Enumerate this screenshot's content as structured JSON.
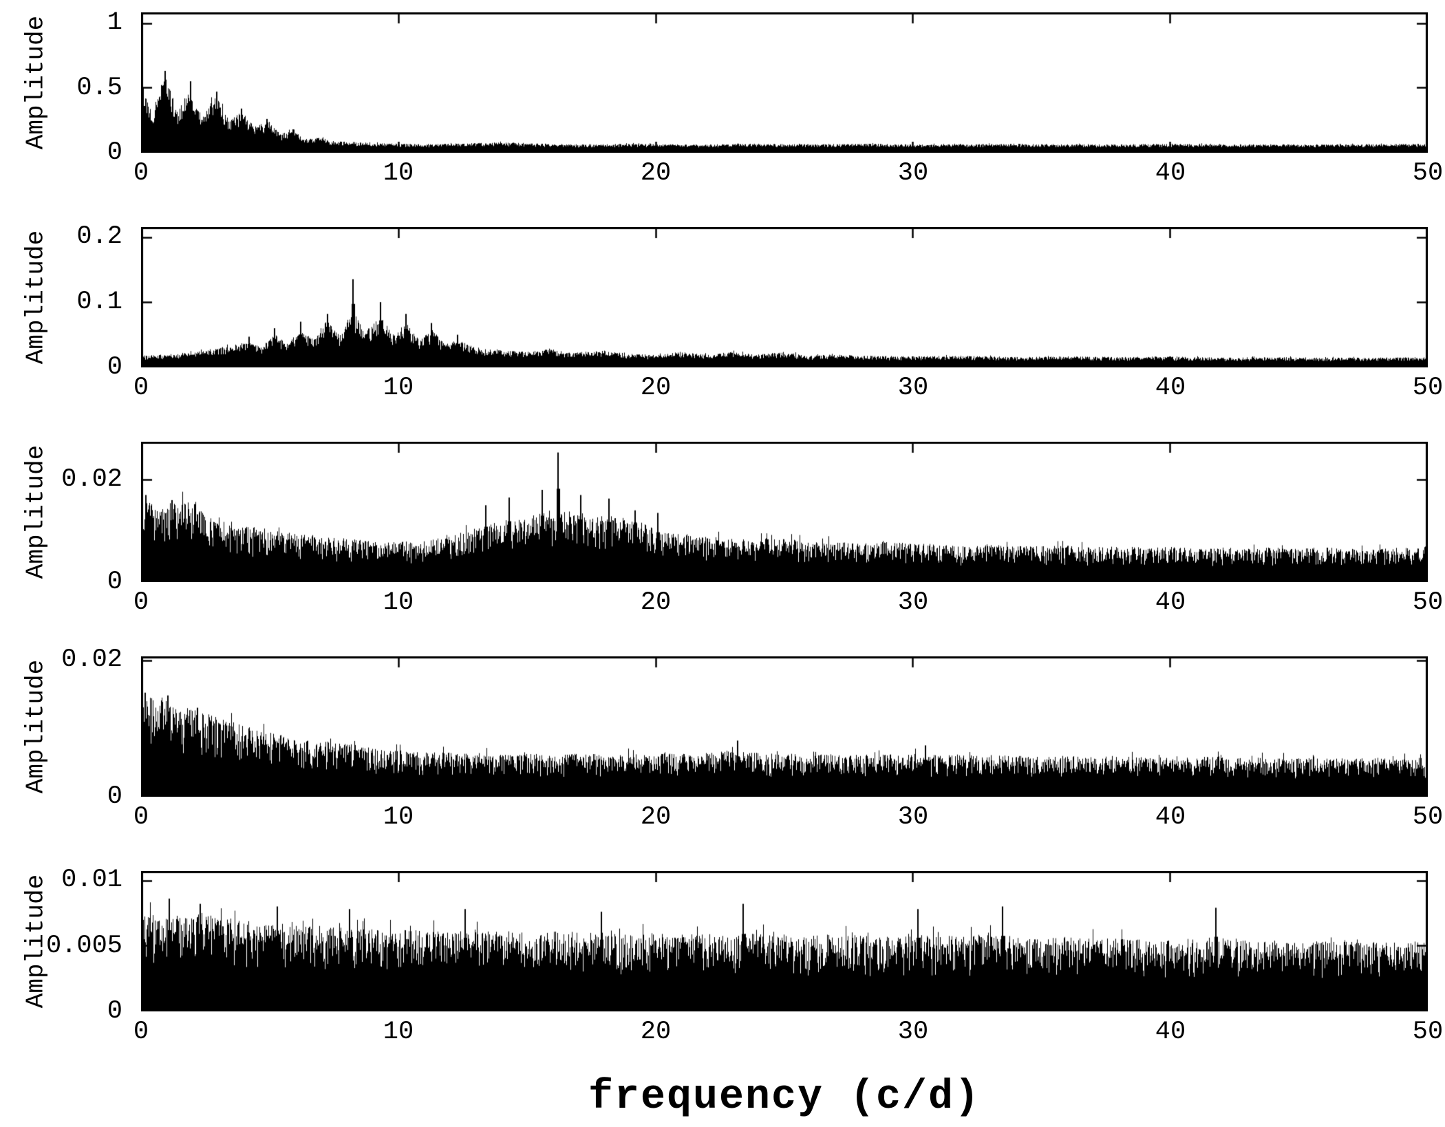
{
  "figure": {
    "xlabel": "frequency (c/d)",
    "background": "#ffffff",
    "ink": "#000000"
  },
  "chart_data": [
    {
      "type": "area",
      "panel": 1,
      "title": "",
      "xlabel": "",
      "ylabel": "Amplitude",
      "xlim": [
        0,
        50
      ],
      "ylim": [
        0,
        1.08
      ],
      "xticks": [
        0,
        10,
        20,
        30,
        40,
        50
      ],
      "yticks": [
        0,
        0.5,
        1
      ],
      "ytick_labels": [
        "0",
        "0.5",
        "1"
      ],
      "grid": false,
      "legend": false,
      "texture": "dense",
      "envelope": [
        [
          0,
          0.5
        ],
        [
          0.45,
          0.33
        ],
        [
          0.9,
          0.6
        ],
        [
          1.4,
          0.33
        ],
        [
          1.9,
          0.52
        ],
        [
          2.4,
          0.29
        ],
        [
          2.9,
          0.45
        ],
        [
          3.4,
          0.26
        ],
        [
          3.9,
          0.33
        ],
        [
          4.4,
          0.2
        ],
        [
          4.9,
          0.24
        ],
        [
          5.4,
          0.15
        ],
        [
          5.9,
          0.17
        ],
        [
          6.4,
          0.11
        ],
        [
          6.9,
          0.12
        ],
        [
          7.5,
          0.09
        ],
        [
          8,
          0.085
        ],
        [
          9,
          0.075
        ],
        [
          10,
          0.07
        ],
        [
          11,
          0.065
        ],
        [
          12,
          0.07
        ],
        [
          13,
          0.075
        ],
        [
          14,
          0.08
        ],
        [
          15,
          0.075
        ],
        [
          16,
          0.07
        ],
        [
          17,
          0.065
        ],
        [
          18,
          0.065
        ],
        [
          19,
          0.07
        ],
        [
          20,
          0.065
        ],
        [
          22,
          0.065
        ],
        [
          24,
          0.07
        ],
        [
          26,
          0.065
        ],
        [
          28,
          0.07
        ],
        [
          30,
          0.065
        ],
        [
          32,
          0.065
        ],
        [
          34,
          0.07
        ],
        [
          36,
          0.065
        ],
        [
          38,
          0.065
        ],
        [
          40,
          0.07
        ],
        [
          42,
          0.065
        ],
        [
          44,
          0.065
        ],
        [
          46,
          0.065
        ],
        [
          48,
          0.065
        ],
        [
          50,
          0.07
        ]
      ],
      "peaks": [
        [
          0.07,
          0.5
        ],
        [
          0.93,
          0.63
        ],
        [
          1.93,
          0.55
        ],
        [
          2.93,
          0.47
        ],
        [
          3.9,
          0.34
        ],
        [
          4.9,
          0.26
        ],
        [
          5.9,
          0.18
        ]
      ]
    },
    {
      "type": "area",
      "panel": 2,
      "title": "",
      "xlabel": "",
      "ylabel": "Amplitude",
      "xlim": [
        0,
        50
      ],
      "ylim": [
        0,
        0.215
      ],
      "xticks": [
        0,
        10,
        20,
        30,
        40,
        50
      ],
      "yticks": [
        0,
        0.1,
        0.2
      ],
      "ytick_labels": [
        "0",
        "0.1",
        "0.2"
      ],
      "grid": false,
      "legend": false,
      "texture": "dense",
      "envelope": [
        [
          0,
          0.018
        ],
        [
          1,
          0.02
        ],
        [
          2,
          0.024
        ],
        [
          3,
          0.03
        ],
        [
          3.7,
          0.036
        ],
        [
          4.2,
          0.042
        ],
        [
          4.7,
          0.032
        ],
        [
          5.2,
          0.052
        ],
        [
          5.7,
          0.036
        ],
        [
          6.2,
          0.062
        ],
        [
          6.7,
          0.042
        ],
        [
          7.2,
          0.072
        ],
        [
          7.7,
          0.05
        ],
        [
          8.2,
          0.09
        ],
        [
          8.7,
          0.055
        ],
        [
          9.3,
          0.078
        ],
        [
          9.8,
          0.05
        ],
        [
          10.3,
          0.068
        ],
        [
          10.8,
          0.042
        ],
        [
          11.3,
          0.058
        ],
        [
          11.8,
          0.036
        ],
        [
          12.3,
          0.042
        ],
        [
          13,
          0.03
        ],
        [
          14,
          0.026
        ],
        [
          15,
          0.024
        ],
        [
          16,
          0.03
        ],
        [
          16.5,
          0.022
        ],
        [
          17,
          0.024
        ],
        [
          18,
          0.026
        ],
        [
          19,
          0.02
        ],
        [
          20,
          0.02
        ],
        [
          21,
          0.024
        ],
        [
          22,
          0.02
        ],
        [
          23,
          0.024
        ],
        [
          24,
          0.02
        ],
        [
          25,
          0.024
        ],
        [
          26,
          0.018
        ],
        [
          27,
          0.02
        ],
        [
          28,
          0.018
        ],
        [
          30,
          0.017
        ],
        [
          32,
          0.018
        ],
        [
          34,
          0.016
        ],
        [
          36,
          0.017
        ],
        [
          38,
          0.016
        ],
        [
          40,
          0.017
        ],
        [
          42,
          0.015
        ],
        [
          44,
          0.016
        ],
        [
          46,
          0.015
        ],
        [
          48,
          0.015
        ],
        [
          50,
          0.016
        ]
      ],
      "peaks": [
        [
          8.25,
          0.135
        ],
        [
          9.3,
          0.1
        ],
        [
          7.25,
          0.082
        ],
        [
          10.3,
          0.082
        ],
        [
          6.2,
          0.07
        ],
        [
          11.3,
          0.068
        ],
        [
          5.2,
          0.06
        ],
        [
          4.2,
          0.047
        ],
        [
          12.3,
          0.05
        ]
      ]
    },
    {
      "type": "area",
      "panel": 3,
      "title": "",
      "xlabel": "",
      "ylabel": "Amplitude",
      "xlim": [
        0,
        50
      ],
      "ylim": [
        0,
        0.0274
      ],
      "xticks": [
        0,
        10,
        20,
        30,
        40,
        50
      ],
      "yticks": [
        0,
        0.02
      ],
      "ytick_labels": [
        "0",
        "0.02"
      ],
      "grid": false,
      "legend": false,
      "texture": "spiky",
      "envelope": [
        [
          0,
          0.017
        ],
        [
          0.7,
          0.014
        ],
        [
          1.2,
          0.016
        ],
        [
          2,
          0.0155
        ],
        [
          2.6,
          0.013
        ],
        [
          3.2,
          0.0125
        ],
        [
          4,
          0.011
        ],
        [
          5,
          0.0105
        ],
        [
          6,
          0.0095
        ],
        [
          7,
          0.009
        ],
        [
          8,
          0.0085
        ],
        [
          9,
          0.008
        ],
        [
          10,
          0.008
        ],
        [
          11,
          0.008
        ],
        [
          12,
          0.009
        ],
        [
          13,
          0.0105
        ],
        [
          13.6,
          0.0115
        ],
        [
          14.3,
          0.0125
        ],
        [
          15,
          0.0125
        ],
        [
          15.6,
          0.014
        ],
        [
          16.2,
          0.0145
        ],
        [
          16.8,
          0.013
        ],
        [
          17.4,
          0.0135
        ],
        [
          18.2,
          0.013
        ],
        [
          19,
          0.012
        ],
        [
          19.6,
          0.0115
        ],
        [
          20.3,
          0.01
        ],
        [
          21,
          0.0095
        ],
        [
          22,
          0.009
        ],
        [
          23,
          0.0085
        ],
        [
          24,
          0.0085
        ],
        [
          25,
          0.0085
        ],
        [
          26,
          0.008
        ],
        [
          27,
          0.008
        ],
        [
          28,
          0.0075
        ],
        [
          29,
          0.008
        ],
        [
          30,
          0.0075
        ],
        [
          31,
          0.0075
        ],
        [
          32,
          0.007
        ],
        [
          33,
          0.0075
        ],
        [
          34,
          0.007
        ],
        [
          35,
          0.007
        ],
        [
          36,
          0.0072
        ],
        [
          37,
          0.0068
        ],
        [
          38,
          0.007
        ],
        [
          39,
          0.0068
        ],
        [
          40,
          0.007
        ],
        [
          41,
          0.0065
        ],
        [
          42,
          0.0068
        ],
        [
          43,
          0.0065
        ],
        [
          44,
          0.0068
        ],
        [
          45,
          0.0065
        ],
        [
          46,
          0.0068
        ],
        [
          47,
          0.0065
        ],
        [
          48,
          0.0065
        ],
        [
          49,
          0.0068
        ],
        [
          50,
          0.007
        ]
      ],
      "peaks": [
        [
          16.2,
          0.0253
        ],
        [
          15.6,
          0.018
        ],
        [
          14.3,
          0.0165
        ],
        [
          17.1,
          0.017
        ],
        [
          18.2,
          0.0163
        ],
        [
          13.4,
          0.015
        ],
        [
          19.2,
          0.014
        ],
        [
          0.2,
          0.017
        ],
        [
          1.2,
          0.016
        ],
        [
          2.1,
          0.0152
        ],
        [
          20.1,
          0.0135
        ]
      ]
    },
    {
      "type": "area",
      "panel": 4,
      "title": "",
      "xlabel": "",
      "ylabel": "Amplitude",
      "xlim": [
        0,
        50
      ],
      "ylim": [
        0,
        0.0205
      ],
      "xticks": [
        0,
        10,
        20,
        30,
        40,
        50
      ],
      "yticks": [
        0,
        0.02
      ],
      "ytick_labels": [
        "0",
        "0.02"
      ],
      "grid": false,
      "legend": false,
      "texture": "spiky",
      "envelope": [
        [
          0,
          0.0152
        ],
        [
          0.5,
          0.0142
        ],
        [
          1,
          0.0145
        ],
        [
          1.5,
          0.0132
        ],
        [
          2,
          0.0128
        ],
        [
          2.5,
          0.0122
        ],
        [
          3,
          0.0115
        ],
        [
          3.5,
          0.011
        ],
        [
          4,
          0.0105
        ],
        [
          4.5,
          0.0098
        ],
        [
          5,
          0.0095
        ],
        [
          5.5,
          0.009
        ],
        [
          6,
          0.0088
        ],
        [
          6.5,
          0.0085
        ],
        [
          7,
          0.0082
        ],
        [
          7.5,
          0.008
        ],
        [
          8,
          0.0078
        ],
        [
          9,
          0.0072
        ],
        [
          10,
          0.0068
        ],
        [
          11,
          0.0066
        ],
        [
          12,
          0.0065
        ],
        [
          13,
          0.0064
        ],
        [
          14,
          0.0063
        ],
        [
          15,
          0.0063
        ],
        [
          16,
          0.0062
        ],
        [
          17,
          0.0063
        ],
        [
          18,
          0.0062
        ],
        [
          19,
          0.0063
        ],
        [
          20,
          0.0064
        ],
        [
          21,
          0.0063
        ],
        [
          22,
          0.0066
        ],
        [
          23,
          0.0068
        ],
        [
          24,
          0.0064
        ],
        [
          25,
          0.0063
        ],
        [
          26,
          0.0062
        ],
        [
          27,
          0.0063
        ],
        [
          28,
          0.0062
        ],
        [
          29,
          0.0062
        ],
        [
          30,
          0.0063
        ],
        [
          31,
          0.0061
        ],
        [
          32,
          0.0062
        ],
        [
          33,
          0.0061
        ],
        [
          34,
          0.006
        ],
        [
          35,
          0.0059
        ],
        [
          36,
          0.006
        ],
        [
          37,
          0.0059
        ],
        [
          38,
          0.006
        ],
        [
          39,
          0.0058
        ],
        [
          40,
          0.0057
        ],
        [
          41,
          0.0058
        ],
        [
          42,
          0.0059
        ],
        [
          43,
          0.0057
        ],
        [
          44,
          0.0058
        ],
        [
          45,
          0.0056
        ],
        [
          46,
          0.0057
        ],
        [
          47,
          0.0056
        ],
        [
          48,
          0.0057
        ],
        [
          49,
          0.0056
        ],
        [
          50,
          0.0058
        ]
      ],
      "peaks": [
        [
          0.15,
          0.0152
        ],
        [
          1.05,
          0.0148
        ],
        [
          2.2,
          0.013
        ],
        [
          23.2,
          0.0082
        ],
        [
          30.5,
          0.0075
        ]
      ]
    },
    {
      "type": "area",
      "panel": 5,
      "title": "",
      "xlabel": "",
      "ylabel": "Amplitude",
      "xlim": [
        0,
        50
      ],
      "ylim": [
        0,
        0.0107
      ],
      "xticks": [
        0,
        10,
        20,
        30,
        40,
        50
      ],
      "yticks": [
        0,
        0.005,
        0.01
      ],
      "ytick_labels": [
        "0",
        "0.005",
        "0.01"
      ],
      "grid": false,
      "legend": false,
      "texture": "spiky",
      "envelope": [
        [
          0,
          0.0072
        ],
        [
          0.8,
          0.0078
        ],
        [
          1.5,
          0.0074
        ],
        [
          2.2,
          0.0076
        ],
        [
          3,
          0.0072
        ],
        [
          4,
          0.007
        ],
        [
          5,
          0.0068
        ],
        [
          6,
          0.0066
        ],
        [
          7,
          0.0066
        ],
        [
          8,
          0.0064
        ],
        [
          9,
          0.0063
        ],
        [
          10,
          0.0062
        ],
        [
          11,
          0.0062
        ],
        [
          12,
          0.0062
        ],
        [
          13,
          0.0061
        ],
        [
          14,
          0.0062
        ],
        [
          15,
          0.006
        ],
        [
          16,
          0.0061
        ],
        [
          17,
          0.006
        ],
        [
          18,
          0.006
        ],
        [
          19,
          0.0059
        ],
        [
          20,
          0.006
        ],
        [
          21,
          0.0059
        ],
        [
          22,
          0.006
        ],
        [
          23,
          0.0061
        ],
        [
          24,
          0.0059
        ],
        [
          25,
          0.006
        ],
        [
          26,
          0.0058
        ],
        [
          27,
          0.0059
        ],
        [
          28,
          0.0058
        ],
        [
          29,
          0.0058
        ],
        [
          30,
          0.0057
        ],
        [
          31,
          0.0058
        ],
        [
          32,
          0.0057
        ],
        [
          33,
          0.0059
        ],
        [
          34,
          0.0057
        ],
        [
          35,
          0.0056
        ],
        [
          36,
          0.0057
        ],
        [
          37,
          0.0056
        ],
        [
          38,
          0.0056
        ],
        [
          39,
          0.0055
        ],
        [
          40,
          0.0054
        ],
        [
          41,
          0.0056
        ],
        [
          42,
          0.0058
        ],
        [
          43,
          0.0054
        ],
        [
          44,
          0.0054
        ],
        [
          45,
          0.0053
        ],
        [
          46,
          0.0054
        ],
        [
          47,
          0.0053
        ],
        [
          48,
          0.0053
        ],
        [
          49,
          0.0054
        ],
        [
          50,
          0.0055
        ]
      ],
      "peaks": [
        [
          1.1,
          0.0086
        ],
        [
          2.3,
          0.0082
        ],
        [
          5.3,
          0.008
        ],
        [
          8.1,
          0.0078
        ],
        [
          23.4,
          0.0082
        ],
        [
          30.2,
          0.0078
        ],
        [
          33.5,
          0.008
        ],
        [
          41.8,
          0.0079
        ],
        [
          12.6,
          0.0078
        ],
        [
          17.9,
          0.0076
        ]
      ]
    }
  ]
}
